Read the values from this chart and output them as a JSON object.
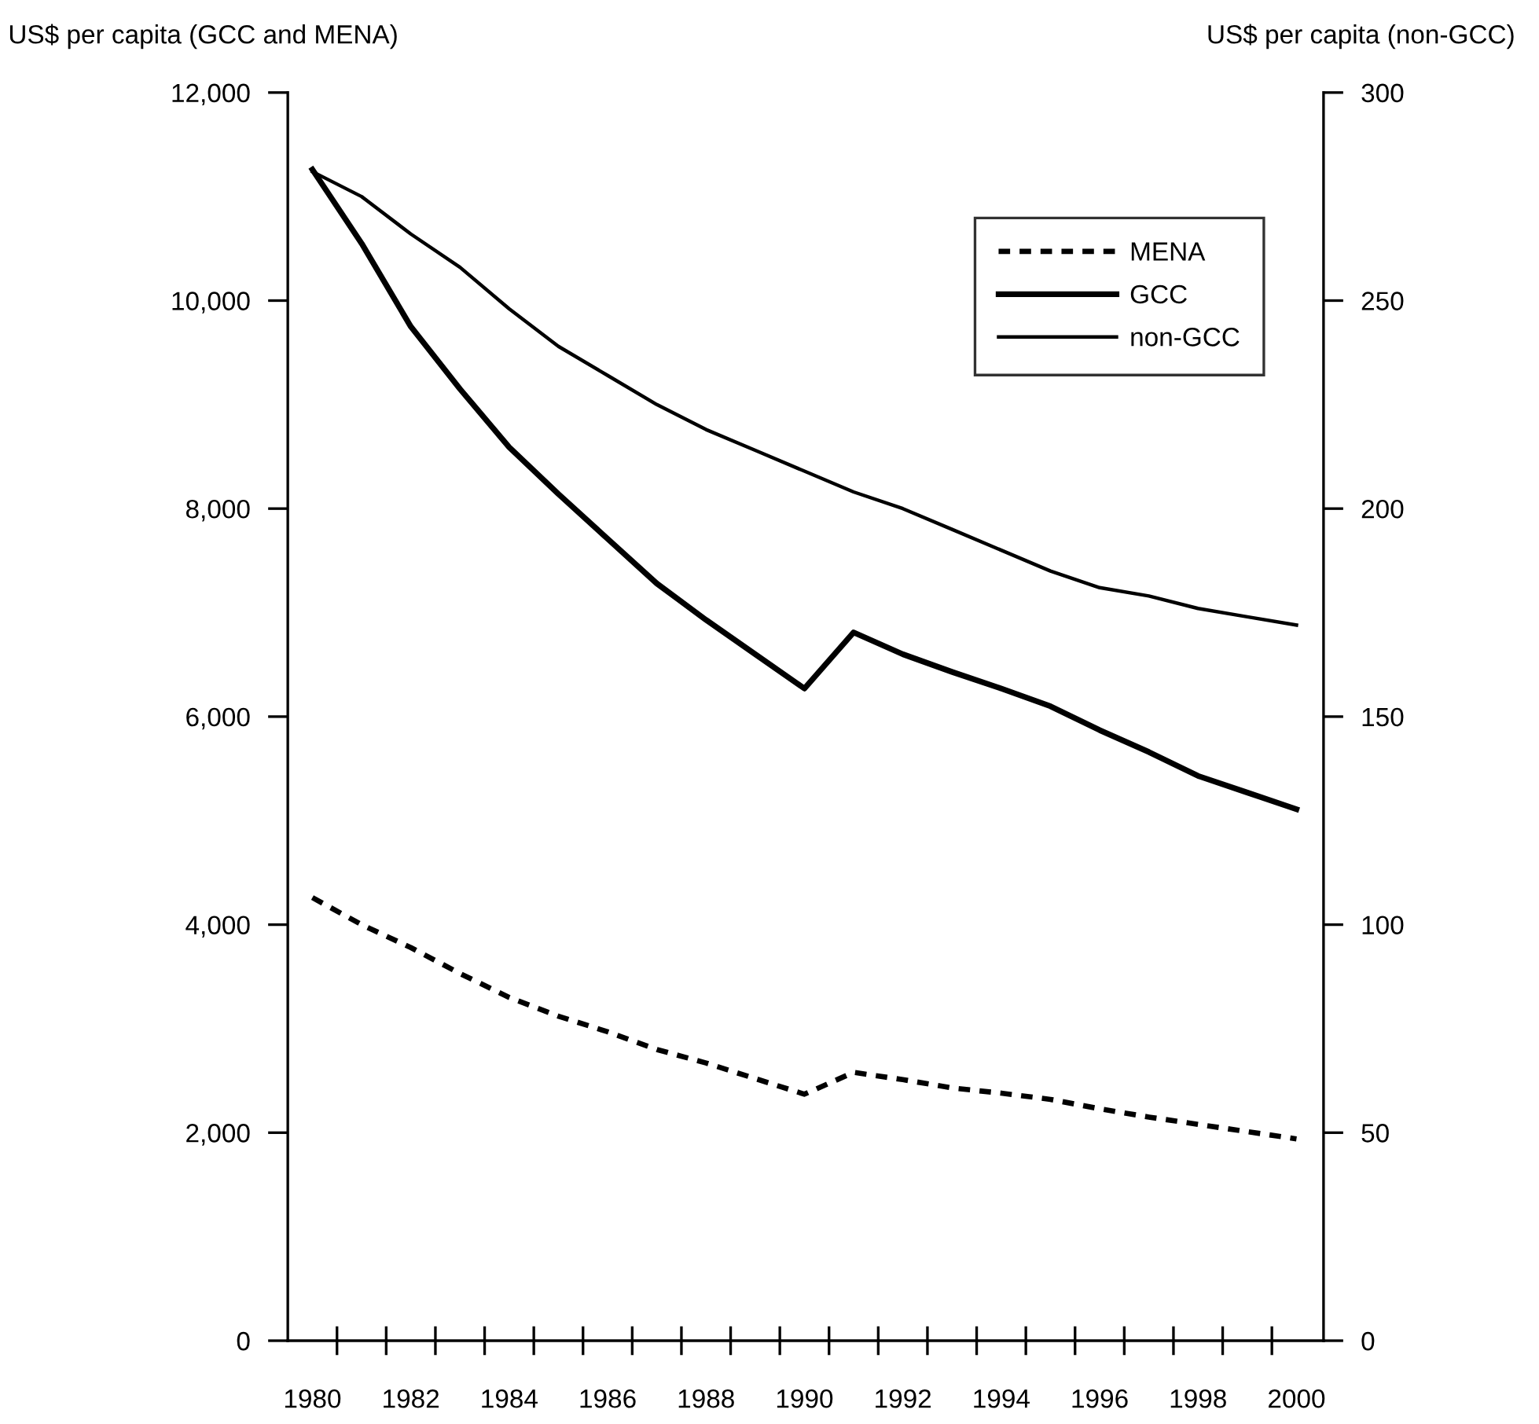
{
  "chart_data": {
    "type": "line",
    "ylabel": "US$ per capita (GCC and MENA)",
    "y2label": "US$ per capita (non-GCC)",
    "categories": [
      "1980",
      null,
      "1982",
      null,
      "1984",
      null,
      "1986",
      null,
      "1988",
      null,
      "1990",
      null,
      "1992",
      null,
      "1994",
      null,
      "1996",
      null,
      "1998",
      null,
      "2000"
    ],
    "series": [
      {
        "name": "MENA",
        "color": "#000000",
        "line_style": "dotted",
        "values": [
          4260,
          4000,
          3780,
          3530,
          3300,
          3120,
          2970,
          2800,
          2670,
          2520,
          2370,
          2580,
          2510,
          2430,
          2380,
          2320,
          2230,
          2150,
          2080,
          2010,
          1940
        ]
      },
      {
        "name": "GCC",
        "color": "#000000",
        "line_style": "solid",
        "values": [
          11260,
          10550,
          9750,
          9150,
          8590,
          8140,
          7710,
          7280,
          6930,
          6600,
          6270,
          6810,
          6600,
          6430,
          6270,
          6100,
          5870,
          5660,
          5430,
          5270,
          5110
        ]
      },
      {
        "name": "non-GCC",
        "color": "#000000",
        "line_style": "solid",
        "axis": "y2",
        "values": [
          281,
          275,
          266,
          258,
          248,
          239,
          232,
          225,
          219,
          214,
          209,
          204,
          200,
          195,
          190,
          185,
          181,
          179,
          176,
          174,
          172
        ]
      }
    ],
    "ylim": [
      0,
      12000
    ],
    "yticks": [
      {
        "value": 0,
        "label": "0"
      },
      {
        "value": 2000,
        "label": "2,000"
      },
      {
        "value": 4000,
        "label": "4,000"
      },
      {
        "value": 6000,
        "label": "6,000"
      },
      {
        "value": 8000,
        "label": "8,000"
      },
      {
        "value": 10000,
        "label": "10,000"
      },
      {
        "value": 12000,
        "label": "12,000"
      }
    ],
    "y2lim": [
      0,
      300
    ],
    "y2ticks": [
      0,
      50,
      100,
      150,
      200,
      250,
      300
    ],
    "legend": "top right",
    "grid": false
  }
}
